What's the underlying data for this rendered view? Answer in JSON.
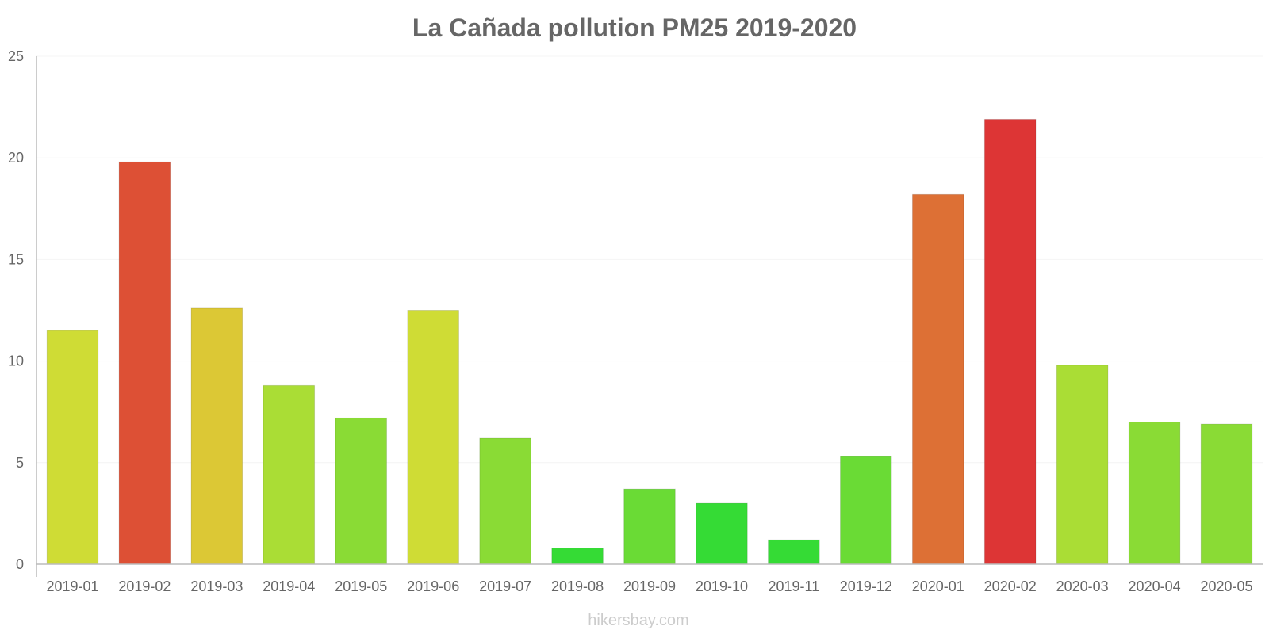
{
  "chart_data": {
    "type": "bar",
    "title": "La Cañada pollution PM25 2019-2020",
    "xlabel": "",
    "ylabel": "",
    "ylim": [
      0,
      25
    ],
    "yticks": [
      0,
      5,
      10,
      15,
      20,
      25
    ],
    "grid": true,
    "categories": [
      "2019-01",
      "2019-02",
      "2019-03",
      "2019-04",
      "2019-05",
      "2019-06",
      "2019-07",
      "2019-08",
      "2019-09",
      "2019-10",
      "2019-11",
      "2019-12",
      "2020-01",
      "2020-02",
      "2020-03",
      "2020-04",
      "2020-05"
    ],
    "values": [
      11.5,
      19.8,
      12.6,
      8.8,
      7.2,
      12.5,
      6.2,
      0.8,
      3.7,
      3.0,
      1.2,
      5.3,
      18.2,
      21.9,
      9.8,
      7.0,
      6.9
    ],
    "colors": [
      "#cfdc35",
      "#dd5035",
      "#dcc835",
      "#aadd35",
      "#8adb35",
      "#cfdc35",
      "#8adb35",
      "#35db35",
      "#6adb35",
      "#35db35",
      "#35db35",
      "#6adb35",
      "#dd7035",
      "#dd3535",
      "#aadd35",
      "#8adb35",
      "#8adb35"
    ]
  },
  "watermark": "hikersbay.com"
}
